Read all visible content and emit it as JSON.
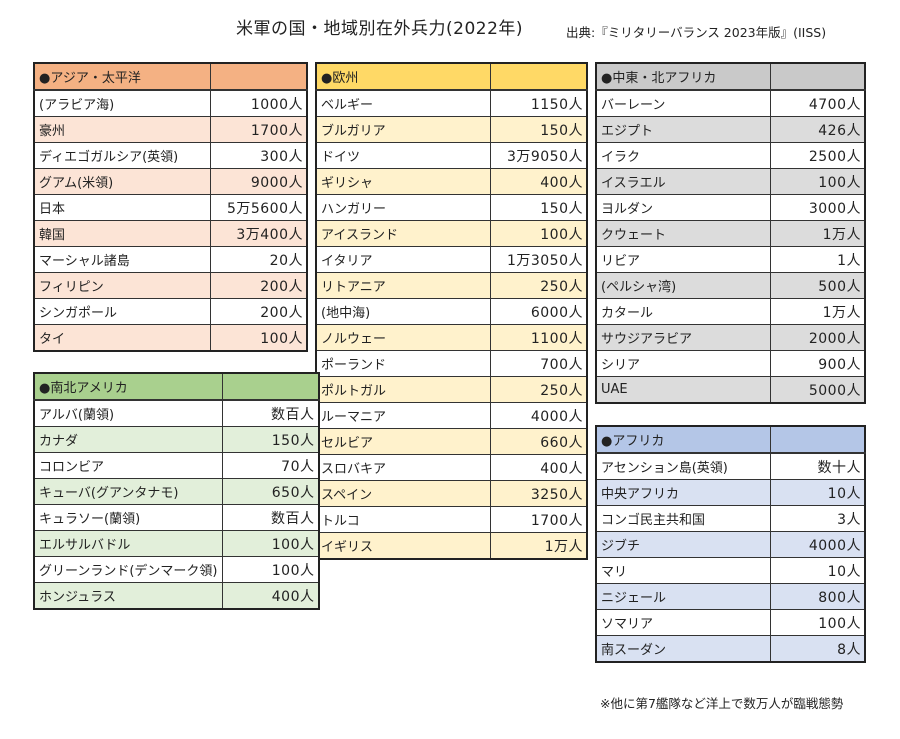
{
  "title": "米軍の国・地域別在外兵力(2022年)",
  "source": "出典:『ミリタリーバランス 2023年版』(IISS)",
  "footnote": "※他に第7艦隊など洋上で数万人が臨戦態勢",
  "tables": {
    "asia": {
      "header": "●アジア・太平洋",
      "header_color": "#f4b183",
      "alt_color": "#fce4d6",
      "rows": [
        {
          "name": "(アラビア海)",
          "value": "1000人"
        },
        {
          "name": "豪州",
          "value": "1700人"
        },
        {
          "name": "ディエゴガルシア(英領)",
          "value": "300人"
        },
        {
          "name": "グアム(米領)",
          "value": "9000人"
        },
        {
          "name": "日本",
          "value": "5万5600人"
        },
        {
          "name": "韓国",
          "value": "3万400人"
        },
        {
          "name": "マーシャル諸島",
          "value": "20人"
        },
        {
          "name": "フィリピン",
          "value": "200人"
        },
        {
          "name": "シンガポール",
          "value": "200人"
        },
        {
          "name": "タイ",
          "value": "100人"
        }
      ]
    },
    "europe": {
      "header": "●欧州",
      "header_color": "#ffd966",
      "alt_color": "#fff2cc",
      "rows": [
        {
          "name": "ベルギー",
          "value": "1150人"
        },
        {
          "name": "ブルガリア",
          "value": "150人"
        },
        {
          "name": "ドイツ",
          "value": "3万9050人"
        },
        {
          "name": "ギリシャ",
          "value": "400人"
        },
        {
          "name": "ハンガリー",
          "value": "150人"
        },
        {
          "name": "アイスランド",
          "value": "100人"
        },
        {
          "name": "イタリア",
          "value": "1万3050人"
        },
        {
          "name": "リトアニア",
          "value": "250人"
        },
        {
          "name": "(地中海)",
          "value": "6000人"
        },
        {
          "name": "ノルウェー",
          "value": "1100人"
        },
        {
          "name": "ポーランド",
          "value": "700人"
        },
        {
          "name": "ポルトガル",
          "value": "250人"
        },
        {
          "name": "ルーマニア",
          "value": "4000人"
        },
        {
          "name": "セルビア",
          "value": "660人"
        },
        {
          "name": "スロバキア",
          "value": "400人"
        },
        {
          "name": "スペイン",
          "value": "3250人"
        },
        {
          "name": "トルコ",
          "value": "1700人"
        },
        {
          "name": "イギリス",
          "value": "1万人"
        }
      ]
    },
    "mideast": {
      "header": "●中東・北アフリカ",
      "header_color": "#c9c9c9",
      "alt_color": "#dcdcdc",
      "rows": [
        {
          "name": "バーレーン",
          "value": "4700人"
        },
        {
          "name": "エジプト",
          "value": "426人"
        },
        {
          "name": "イラク",
          "value": "2500人"
        },
        {
          "name": "イスラエル",
          "value": "100人"
        },
        {
          "name": "ヨルダン",
          "value": "3000人"
        },
        {
          "name": "クウェート",
          "value": "1万人"
        },
        {
          "name": "リビア",
          "value": "1人"
        },
        {
          "name": "(ペルシャ湾)",
          "value": "500人"
        },
        {
          "name": "カタール",
          "value": "1万人"
        },
        {
          "name": "サウジアラビア",
          "value": "2000人"
        },
        {
          "name": "シリア",
          "value": "900人"
        },
        {
          "name": "UAE",
          "value": "5000人"
        }
      ]
    },
    "americas": {
      "header": "●南北アメリカ",
      "header_color": "#a9d08e",
      "alt_color": "#e2efda",
      "rows": [
        {
          "name": "アルバ(蘭領)",
          "value": "数百人"
        },
        {
          "name": "カナダ",
          "value": "150人"
        },
        {
          "name": "コロンビア",
          "value": "70人"
        },
        {
          "name": "キューバ(グアンタナモ)",
          "value": "650人"
        },
        {
          "name": "キュラソー(蘭領)",
          "value": "数百人"
        },
        {
          "name": "エルサルバドル",
          "value": "100人"
        },
        {
          "name": "グリーンランド(デンマーク領)",
          "value": "100人"
        },
        {
          "name": "ホンジュラス",
          "value": "400人"
        }
      ]
    },
    "africa": {
      "header": "●アフリカ",
      "header_color": "#b4c6e7",
      "alt_color": "#d9e1f2",
      "rows": [
        {
          "name": "アセンション島(英領)",
          "value": "数十人"
        },
        {
          "name": "中央アフリカ",
          "value": "10人"
        },
        {
          "name": "コンゴ民主共和国",
          "value": "3人"
        },
        {
          "name": "ジブチ",
          "value": "4000人"
        },
        {
          "name": "マリ",
          "value": "10人"
        },
        {
          "name": "ニジェール",
          "value": "800人"
        },
        {
          "name": "ソマリア",
          "value": "100人"
        },
        {
          "name": "南スーダン",
          "value": "8人"
        }
      ]
    }
  }
}
